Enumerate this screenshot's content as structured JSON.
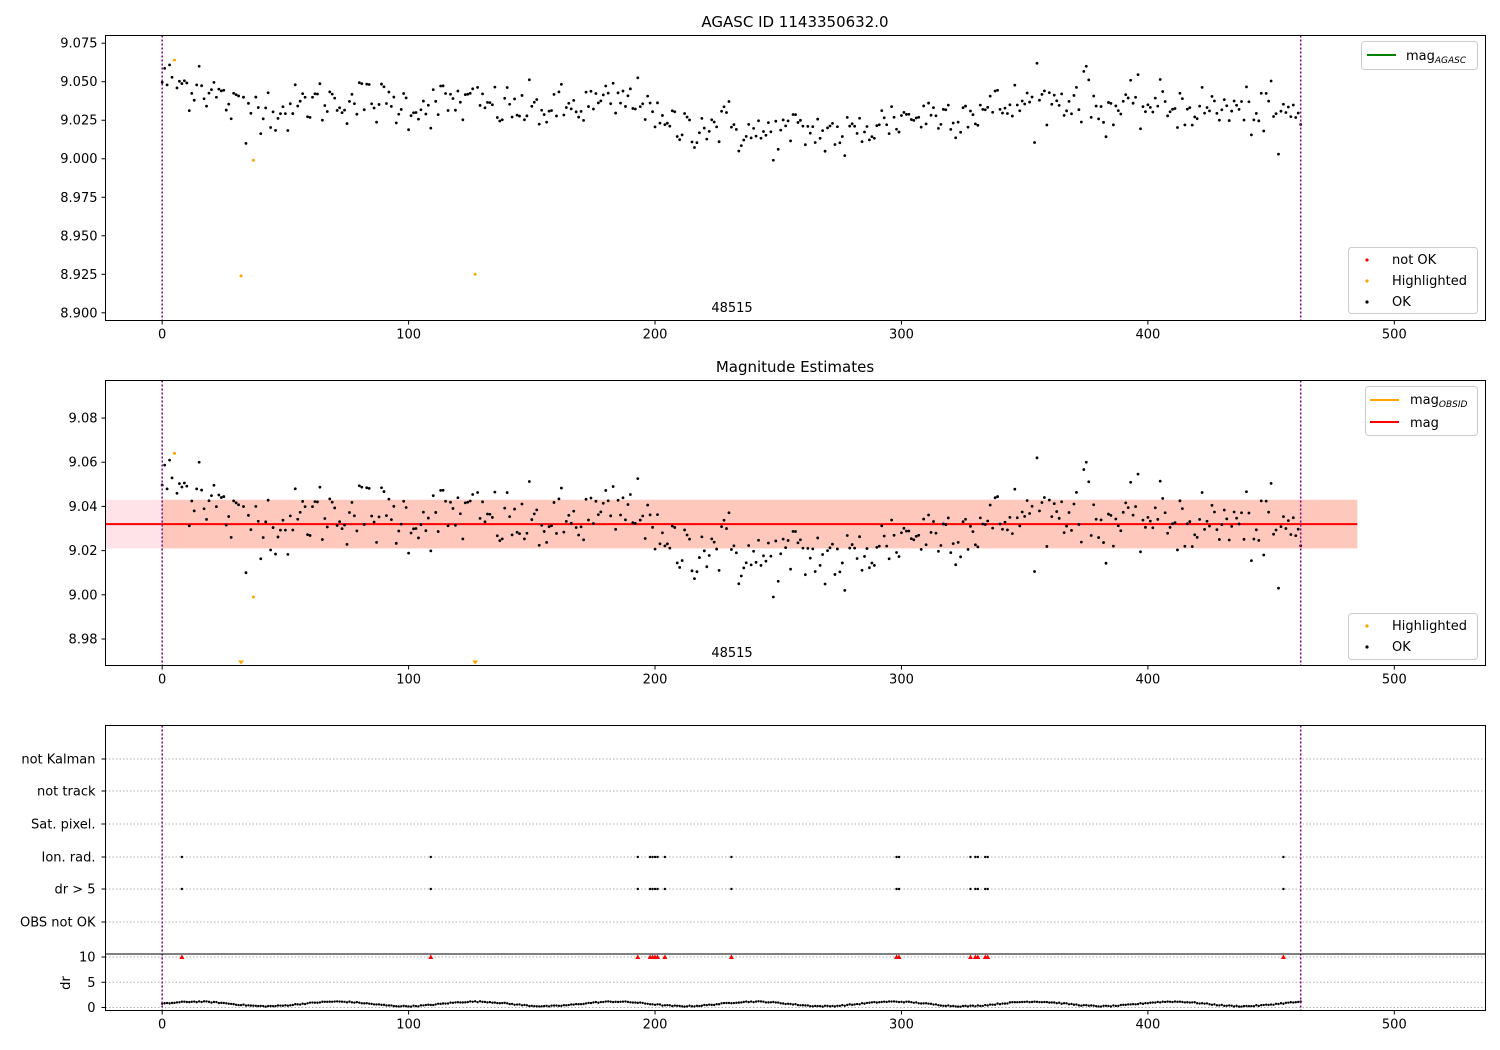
{
  "chart_data": [
    {
      "type": "scatter",
      "title": "AGASC ID 1143350632.0",
      "xlim": [
        -23,
        537
      ],
      "ylim": [
        8.895,
        9.08
      ],
      "xticks": [
        0,
        100,
        200,
        300,
        400,
        500
      ],
      "yticks": [
        8.9,
        8.925,
        8.95,
        8.975,
        9.0,
        9.025,
        9.05,
        9.075
      ],
      "ytick_labels": [
        "8.900",
        "8.925",
        "8.950",
        "8.975",
        "9.000",
        "9.025",
        "9.050",
        "9.075"
      ],
      "obsid_label": "48515",
      "obsid_label_x": 230,
      "vlines": [
        0,
        462
      ],
      "legend_top": [
        {
          "label": "mag",
          "sub": "AGASC",
          "color": "#008000"
        }
      ],
      "legend_bottom": [
        {
          "label": "not OK",
          "color": "#ff0000"
        },
        {
          "label": "Highlighted",
          "color": "#ffa500"
        },
        {
          "label": "OK",
          "color": "#000000"
        }
      ],
      "highlighted": [
        [
          5,
          9.064
        ],
        [
          32,
          8.924
        ],
        [
          37,
          8.999
        ],
        [
          127,
          8.925
        ]
      ]
    },
    {
      "type": "scatter",
      "title": "Magnitude Estimates",
      "xlim": [
        -23,
        537
      ],
      "ylim": [
        8.968,
        9.097
      ],
      "xticks": [
        0,
        100,
        200,
        300,
        400,
        500
      ],
      "yticks": [
        8.98,
        9.0,
        9.02,
        9.04,
        9.06,
        9.08
      ],
      "ytick_labels": [
        "8.98",
        "9.00",
        "9.02",
        "9.04",
        "9.06",
        "9.08"
      ],
      "obsid_label": "48515",
      "obsid_label_x": 230,
      "vlines": [
        0,
        462
      ],
      "mag": 9.032,
      "mag_obsid": 9.032,
      "mag_band": [
        9.021,
        9.043
      ],
      "band_x": [
        -23,
        485
      ],
      "obsid_band_x": [
        0,
        485
      ],
      "legend_top": [
        {
          "label": "mag",
          "sub": "OBSID",
          "color": "#ffa500"
        },
        {
          "label": "mag",
          "sub": "",
          "color": "#ff0000"
        }
      ],
      "legend_bottom": [
        {
          "label": "Highlighted",
          "color": "#ffa500"
        },
        {
          "label": "OK",
          "color": "#000000"
        }
      ],
      "highlighted": [
        [
          5,
          9.064
        ],
        [
          37,
          8.999
        ]
      ],
      "clipped_markers": [
        32,
        127
      ]
    },
    {
      "type": "scatter",
      "title": "",
      "xlim": [
        -23,
        537
      ],
      "xticks": [
        0,
        100,
        200,
        300,
        400,
        500
      ],
      "flag_rows": [
        "not Kalman",
        "not track",
        "Sat. pixel.",
        "Ion. rad.",
        "dr > 5",
        "OBS not OK"
      ],
      "flag_points": [
        8,
        109,
        193,
        198,
        199,
        200,
        201,
        204,
        231,
        298,
        299,
        328,
        330,
        331,
        334,
        335,
        455
      ],
      "flagged_rows": [
        "Ion. rad.",
        "dr > 5"
      ],
      "dr": {
        "ylabel": "dr",
        "yticks": [
          0,
          5,
          10
        ],
        "ylim": [
          -0.6,
          10.6
        ],
        "outlier_markers_y": 10,
        "baseline": 0.7
      },
      "vlines": [
        0,
        462
      ]
    }
  ]
}
